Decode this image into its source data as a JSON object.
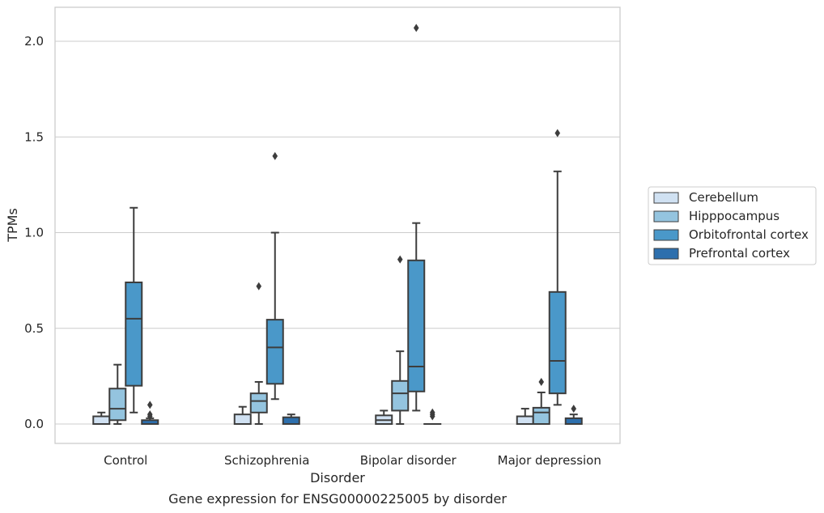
{
  "chart_data": {
    "type": "box",
    "caption": "Gene expression for ENSG00000225005 by disorder",
    "xlabel": "Disorder",
    "ylabel": "TPMs",
    "ylim": [
      -0.1,
      2.18
    ],
    "yticks": [
      0.0,
      0.5,
      1.0,
      1.5,
      2.0
    ],
    "ytick_labels": [
      "0.0",
      "0.5",
      "1.0",
      "1.5",
      "2.0"
    ],
    "grid": "horizontal",
    "legend_position": "right",
    "categories": [
      "Control",
      "Schizophrenia",
      "Bipolar disorder",
      "Major depression"
    ],
    "series": [
      {
        "name": "Cerebellum",
        "color": "#d0e1f2",
        "boxes": [
          {
            "whislo": 0.0,
            "q1": 0.0,
            "med": 0.0,
            "q3": 0.04,
            "whishi": 0.06,
            "fliers": []
          },
          {
            "whislo": 0.0,
            "q1": 0.0,
            "med": 0.0,
            "q3": 0.05,
            "whishi": 0.09,
            "fliers": []
          },
          {
            "whislo": 0.0,
            "q1": 0.0,
            "med": 0.02,
            "q3": 0.045,
            "whishi": 0.07,
            "fliers": []
          },
          {
            "whislo": 0.0,
            "q1": 0.0,
            "med": 0.0,
            "q3": 0.04,
            "whishi": 0.08,
            "fliers": []
          }
        ]
      },
      {
        "name": "Hipppocampus",
        "color": "#94c4df",
        "boxes": [
          {
            "whislo": 0.0,
            "q1": 0.02,
            "med": 0.08,
            "q3": 0.185,
            "whishi": 0.31,
            "fliers": []
          },
          {
            "whislo": 0.0,
            "q1": 0.06,
            "med": 0.12,
            "q3": 0.16,
            "whishi": 0.22,
            "fliers": [
              0.72
            ]
          },
          {
            "whislo": 0.0,
            "q1": 0.07,
            "med": 0.16,
            "q3": 0.225,
            "whishi": 0.38,
            "fliers": [
              0.86
            ]
          },
          {
            "whislo": 0.0,
            "q1": 0.0,
            "med": 0.06,
            "q3": 0.085,
            "whishi": 0.165,
            "fliers": [
              0.22
            ]
          }
        ]
      },
      {
        "name": "Orbitofrontal cortex",
        "color": "#4a98c9",
        "boxes": [
          {
            "whislo": 0.06,
            "q1": 0.2,
            "med": 0.55,
            "q3": 0.74,
            "whishi": 1.13,
            "fliers": []
          },
          {
            "whislo": 0.13,
            "q1": 0.21,
            "med": 0.4,
            "q3": 0.545,
            "whishi": 1.0,
            "fliers": [
              1.4
            ]
          },
          {
            "whislo": 0.07,
            "q1": 0.17,
            "med": 0.3,
            "q3": 0.855,
            "whishi": 1.05,
            "fliers": [
              2.07
            ]
          },
          {
            "whislo": 0.1,
            "q1": 0.16,
            "med": 0.33,
            "q3": 0.69,
            "whishi": 1.32,
            "fliers": [
              1.52
            ]
          }
        ]
      },
      {
        "name": "Prefrontal cortex",
        "color": "#2d6fad",
        "boxes": [
          {
            "whislo": 0.0,
            "q1": 0.0,
            "med": 0.0,
            "q3": 0.02,
            "whishi": 0.03,
            "fliers": [
              0.04,
              0.05,
              0.1
            ]
          },
          {
            "whislo": 0.0,
            "q1": 0.0,
            "med": 0.0,
            "q3": 0.035,
            "whishi": 0.05,
            "fliers": []
          },
          {
            "whislo": 0.0,
            "q1": 0.0,
            "med": 0.0,
            "q3": 0.0,
            "whishi": 0.0,
            "fliers": [
              0.04,
              0.05,
              0.06
            ]
          },
          {
            "whislo": 0.0,
            "q1": 0.0,
            "med": 0.0,
            "q3": 0.03,
            "whishi": 0.05,
            "fliers": [
              0.08
            ]
          }
        ]
      }
    ]
  }
}
